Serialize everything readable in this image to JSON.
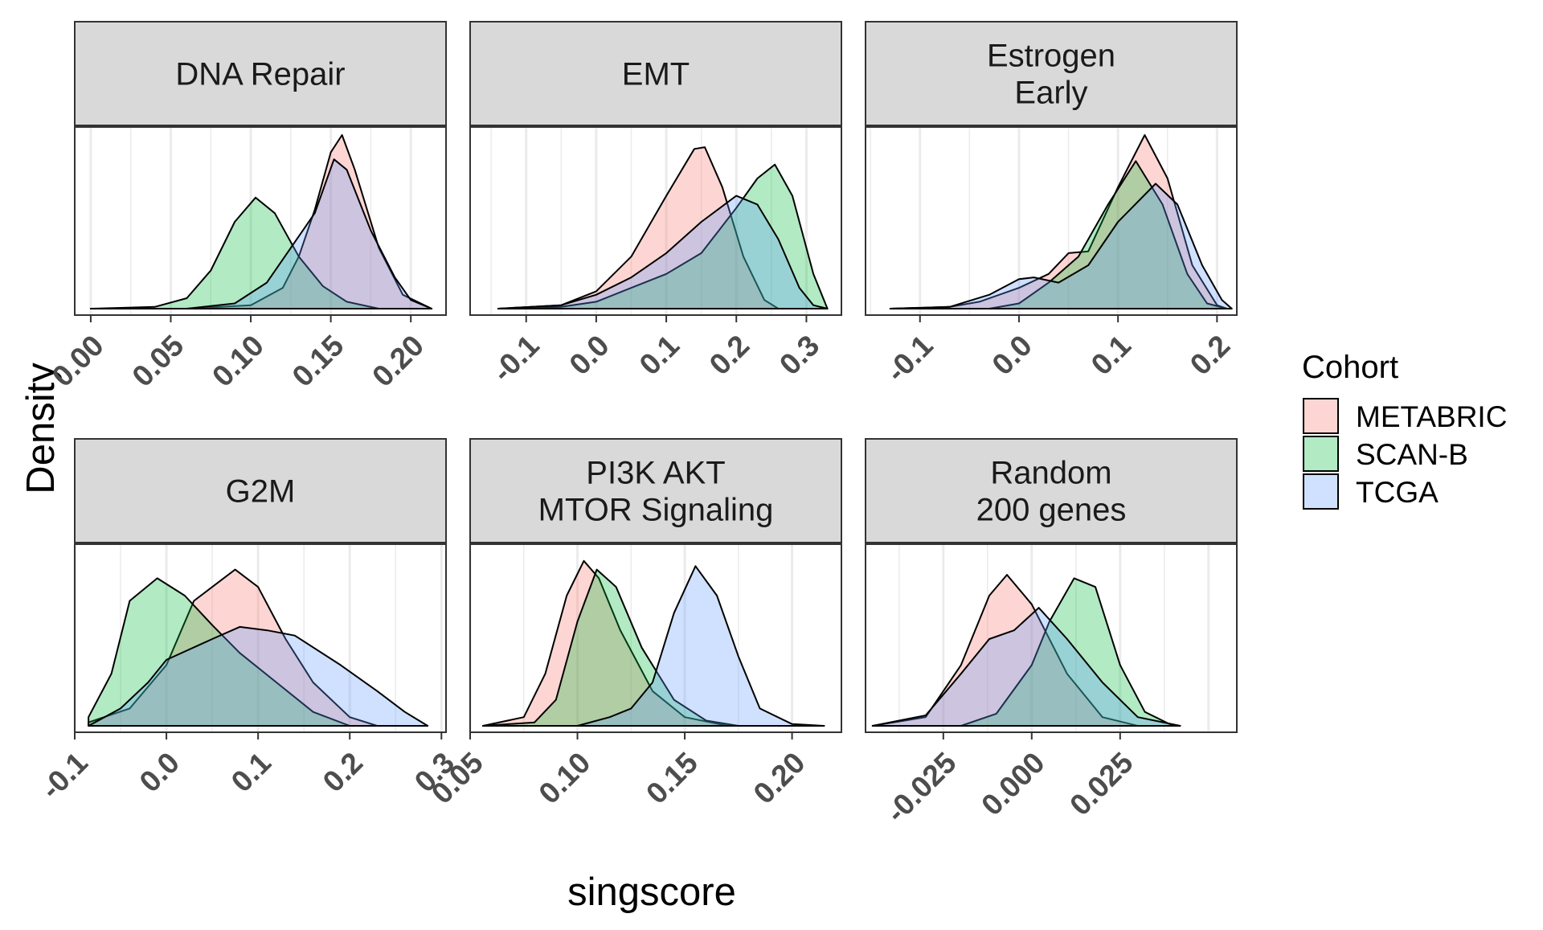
{
  "chart_data": {
    "type": "area",
    "subtype": "density",
    "xlabel": "singscore",
    "ylabel": "Density",
    "grid": true,
    "legend": {
      "title": "Cohort",
      "position": "right"
    },
    "series": [
      {
        "name": "METABRIC",
        "color": "#F8766D"
      },
      {
        "name": "SCAN-B",
        "color": "#00BA38"
      },
      {
        "name": "TCGA",
        "color": "#619CFF"
      }
    ],
    "facets": [
      {
        "title": [
          "DNA Repair"
        ],
        "xlim": [
          -0.01,
          0.222
        ],
        "ymax": 1.0,
        "xticks": [
          0.0,
          0.05,
          0.1,
          0.15,
          0.2
        ],
        "xtick_labels": [
          "0.00",
          "0.05",
          "0.10",
          "0.15",
          "0.20"
        ],
        "curves": {
          "METABRIC": [
            [
              0.0,
              0.0
            ],
            [
              0.06,
              0.0
            ],
            [
              0.1,
              0.02
            ],
            [
              0.12,
              0.12
            ],
            [
              0.13,
              0.3
            ],
            [
              0.14,
              0.57
            ],
            [
              0.15,
              0.9
            ],
            [
              0.157,
              1.0
            ],
            [
              0.165,
              0.8
            ],
            [
              0.18,
              0.35
            ],
            [
              0.195,
              0.08
            ],
            [
              0.213,
              0.0
            ]
          ],
          "SCAN-B": [
            [
              0.0,
              0.0
            ],
            [
              0.04,
              0.01
            ],
            [
              0.06,
              0.06
            ],
            [
              0.075,
              0.22
            ],
            [
              0.09,
              0.5
            ],
            [
              0.103,
              0.64
            ],
            [
              0.115,
              0.55
            ],
            [
              0.13,
              0.3
            ],
            [
              0.145,
              0.13
            ],
            [
              0.16,
              0.04
            ],
            [
              0.18,
              0.0
            ],
            [
              0.21,
              0.0
            ]
          ],
          "TCGA": [
            [
              0.0,
              0.0
            ],
            [
              0.06,
              0.0
            ],
            [
              0.09,
              0.03
            ],
            [
              0.11,
              0.15
            ],
            [
              0.125,
              0.35
            ],
            [
              0.14,
              0.55
            ],
            [
              0.152,
              0.86
            ],
            [
              0.16,
              0.8
            ],
            [
              0.175,
              0.45
            ],
            [
              0.19,
              0.18
            ],
            [
              0.2,
              0.05
            ],
            [
              0.213,
              0.0
            ]
          ]
        }
      },
      {
        "title": [
          "EMT"
        ],
        "xlim": [
          -0.18,
          0.35
        ],
        "ymax": 1.0,
        "xticks": [
          -0.1,
          0.0,
          0.1,
          0.2,
          0.3
        ],
        "xtick_labels": [
          "-0.1",
          "0.0",
          "0.1",
          "0.2",
          "0.3"
        ],
        "curves": {
          "METABRIC": [
            [
              -0.14,
              0.0
            ],
            [
              -0.05,
              0.02
            ],
            [
              0.0,
              0.1
            ],
            [
              0.05,
              0.3
            ],
            [
              0.1,
              0.65
            ],
            [
              0.14,
              0.92
            ],
            [
              0.155,
              0.93
            ],
            [
              0.18,
              0.7
            ],
            [
              0.21,
              0.3
            ],
            [
              0.24,
              0.05
            ],
            [
              0.26,
              0.0
            ]
          ],
          "SCAN-B": [
            [
              -0.14,
              0.0
            ],
            [
              -0.05,
              0.01
            ],
            [
              0.0,
              0.04
            ],
            [
              0.05,
              0.12
            ],
            [
              0.1,
              0.2
            ],
            [
              0.15,
              0.32
            ],
            [
              0.2,
              0.58
            ],
            [
              0.23,
              0.75
            ],
            [
              0.255,
              0.83
            ],
            [
              0.28,
              0.65
            ],
            [
              0.31,
              0.2
            ],
            [
              0.33,
              0.0
            ]
          ],
          "TCGA": [
            [
              -0.14,
              0.0
            ],
            [
              -0.05,
              0.02
            ],
            [
              0.0,
              0.08
            ],
            [
              0.05,
              0.18
            ],
            [
              0.1,
              0.32
            ],
            [
              0.15,
              0.5
            ],
            [
              0.2,
              0.65
            ],
            [
              0.23,
              0.6
            ],
            [
              0.26,
              0.4
            ],
            [
              0.29,
              0.12
            ],
            [
              0.31,
              0.02
            ],
            [
              0.33,
              0.0
            ]
          ]
        }
      },
      {
        "title": [
          "Estrogen",
          "Early"
        ],
        "xlim": [
          -0.155,
          0.22
        ],
        "ymax": 1.0,
        "xticks": [
          -0.1,
          0.0,
          0.1,
          0.2
        ],
        "xtick_labels": [
          "-0.1",
          "0.0",
          "0.1",
          "0.2"
        ],
        "curves": {
          "METABRIC": [
            [
              -0.13,
              0.0
            ],
            [
              -0.07,
              0.01
            ],
            [
              -0.04,
              0.04
            ],
            [
              0.0,
              0.12
            ],
            [
              0.03,
              0.2
            ],
            [
              0.05,
              0.32
            ],
            [
              0.07,
              0.33
            ],
            [
              0.1,
              0.7
            ],
            [
              0.127,
              1.0
            ],
            [
              0.15,
              0.75
            ],
            [
              0.175,
              0.25
            ],
            [
              0.2,
              0.02
            ],
            [
              0.21,
              0.0
            ]
          ],
          "SCAN-B": [
            [
              -0.13,
              0.0
            ],
            [
              -0.03,
              0.0
            ],
            [
              0.0,
              0.03
            ],
            [
              0.03,
              0.15
            ],
            [
              0.06,
              0.3
            ],
            [
              0.09,
              0.6
            ],
            [
              0.118,
              0.85
            ],
            [
              0.145,
              0.6
            ],
            [
              0.17,
              0.2
            ],
            [
              0.19,
              0.03
            ],
            [
              0.21,
              0.0
            ]
          ],
          "TCGA": [
            [
              -0.13,
              0.0
            ],
            [
              -0.07,
              0.01
            ],
            [
              -0.03,
              0.08
            ],
            [
              0.0,
              0.17
            ],
            [
              0.015,
              0.18
            ],
            [
              0.04,
              0.15
            ],
            [
              0.07,
              0.25
            ],
            [
              0.1,
              0.5
            ],
            [
              0.138,
              0.72
            ],
            [
              0.16,
              0.6
            ],
            [
              0.185,
              0.25
            ],
            [
              0.205,
              0.05
            ],
            [
              0.215,
              0.0
            ]
          ]
        }
      },
      {
        "title": [
          "G2M"
        ],
        "xlim": [
          -0.1,
          0.305
        ],
        "ymax": 1.0,
        "xticks": [
          -0.1,
          0.0,
          0.1,
          0.2,
          0.3
        ],
        "xtick_labels": [
          "-0.1",
          "0.0",
          "0.1",
          "0.2",
          "0.3"
        ],
        "curves": {
          "METABRIC": [
            [
              -0.085,
              0.02
            ],
            [
              -0.04,
              0.1
            ],
            [
              0.0,
              0.35
            ],
            [
              0.03,
              0.72
            ],
            [
              0.05,
              0.8
            ],
            [
              0.075,
              0.9
            ],
            [
              0.1,
              0.8
            ],
            [
              0.13,
              0.5
            ],
            [
              0.16,
              0.25
            ],
            [
              0.2,
              0.05
            ],
            [
              0.23,
              0.0
            ]
          ],
          "SCAN-B": [
            [
              -0.085,
              0.05
            ],
            [
              -0.06,
              0.3
            ],
            [
              -0.04,
              0.72
            ],
            [
              -0.01,
              0.85
            ],
            [
              0.02,
              0.75
            ],
            [
              0.05,
              0.58
            ],
            [
              0.08,
              0.42
            ],
            [
              0.12,
              0.25
            ],
            [
              0.16,
              0.08
            ],
            [
              0.2,
              0.0
            ]
          ],
          "TCGA": [
            [
              -0.085,
              0.0
            ],
            [
              -0.05,
              0.1
            ],
            [
              -0.02,
              0.25
            ],
            [
              0.0,
              0.38
            ],
            [
              0.05,
              0.5
            ],
            [
              0.08,
              0.57
            ],
            [
              0.11,
              0.55
            ],
            [
              0.14,
              0.52
            ],
            [
              0.19,
              0.35
            ],
            [
              0.23,
              0.2
            ],
            [
              0.26,
              0.08
            ],
            [
              0.285,
              0.0
            ]
          ]
        }
      },
      {
        "title": [
          "PI3K AKT",
          "MTOR Signaling"
        ],
        "xlim": [
          0.05,
          0.223
        ],
        "ymax": 1.0,
        "xticks": [
          0.05,
          0.1,
          0.15,
          0.2
        ],
        "xtick_labels": [
          "0.05",
          "0.10",
          "0.15",
          "0.20"
        ],
        "curves": {
          "METABRIC": [
            [
              0.056,
              0.0
            ],
            [
              0.075,
              0.05
            ],
            [
              0.085,
              0.3
            ],
            [
              0.095,
              0.75
            ],
            [
              0.103,
              0.95
            ],
            [
              0.11,
              0.85
            ],
            [
              0.12,
              0.55
            ],
            [
              0.135,
              0.2
            ],
            [
              0.15,
              0.05
            ],
            [
              0.17,
              0.0
            ]
          ],
          "SCAN-B": [
            [
              0.056,
              0.0
            ],
            [
              0.08,
              0.02
            ],
            [
              0.09,
              0.15
            ],
            [
              0.1,
              0.6
            ],
            [
              0.109,
              0.9
            ],
            [
              0.118,
              0.8
            ],
            [
              0.13,
              0.45
            ],
            [
              0.145,
              0.15
            ],
            [
              0.16,
              0.03
            ],
            [
              0.175,
              0.0
            ]
          ],
          "TCGA": [
            [
              0.056,
              0.0
            ],
            [
              0.1,
              0.0
            ],
            [
              0.115,
              0.05
            ],
            [
              0.125,
              0.1
            ],
            [
              0.135,
              0.25
            ],
            [
              0.145,
              0.65
            ],
            [
              0.155,
              0.92
            ],
            [
              0.165,
              0.75
            ],
            [
              0.175,
              0.4
            ],
            [
              0.185,
              0.1
            ],
            [
              0.2,
              0.01
            ],
            [
              0.215,
              0.0
            ]
          ]
        }
      },
      {
        "title": [
          "Random",
          "200 genes"
        ],
        "xlim": [
          -0.047,
          0.058
        ],
        "ymax": 1.0,
        "xticks": [
          -0.025,
          0.0,
          0.025
        ],
        "xtick_labels": [
          "-0.025",
          "0.000",
          "0.025"
        ],
        "curves": {
          "METABRIC": [
            [
              -0.045,
              0.0
            ],
            [
              -0.03,
              0.05
            ],
            [
              -0.02,
              0.35
            ],
            [
              -0.012,
              0.75
            ],
            [
              -0.007,
              0.87
            ],
            [
              0.0,
              0.7
            ],
            [
              0.01,
              0.3
            ],
            [
              0.02,
              0.05
            ],
            [
              0.03,
              0.0
            ]
          ],
          "SCAN-B": [
            [
              -0.045,
              0.0
            ],
            [
              -0.02,
              0.0
            ],
            [
              -0.01,
              0.07
            ],
            [
              0.0,
              0.35
            ],
            [
              0.005,
              0.6
            ],
            [
              0.012,
              0.85
            ],
            [
              0.018,
              0.8
            ],
            [
              0.025,
              0.35
            ],
            [
              0.032,
              0.08
            ],
            [
              0.04,
              0.0
            ]
          ],
          "TCGA": [
            [
              -0.045,
              0.0
            ],
            [
              -0.03,
              0.06
            ],
            [
              -0.02,
              0.3
            ],
            [
              -0.012,
              0.5
            ],
            [
              -0.005,
              0.55
            ],
            [
              0.002,
              0.68
            ],
            [
              0.01,
              0.5
            ],
            [
              0.02,
              0.25
            ],
            [
              0.03,
              0.05
            ],
            [
              0.042,
              0.0
            ]
          ]
        }
      }
    ]
  }
}
